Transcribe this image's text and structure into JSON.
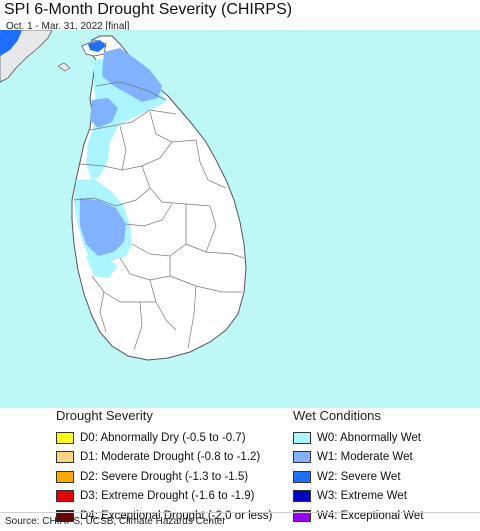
{
  "title": "SPI 6-Month Drought Severity (CHIRPS)",
  "subtitle": "Oct. 1 - Mar. 31, 2022 [final]",
  "colors": {
    "ocean": "#bdf7f6",
    "land": "#ffffff",
    "india": "#e8e8e8",
    "border": "#555555",
    "district_line": "#777777"
  },
  "legend": {
    "drought": {
      "title": "Drought Severity",
      "items": [
        {
          "code": "D0",
          "label": "D0: Abnormally Dry (-0.5 to -0.7)",
          "color": "#ffff00"
        },
        {
          "code": "D1",
          "label": "D1: Moderate Drought (-0.8 to -1.2)",
          "color": "#fcd37f"
        },
        {
          "code": "D2",
          "label": "D2: Severe Drought (-1.3 to -1.5)",
          "color": "#ffaa00"
        },
        {
          "code": "D3",
          "label": "D3: Extreme Drought (-1.6 to -1.9)",
          "color": "#e60000"
        },
        {
          "code": "D4",
          "label": "D4: Exceptional Drought (-2.0 or less)",
          "color": "#730000"
        }
      ]
    },
    "wet": {
      "title": "Wet Conditions",
      "items": [
        {
          "code": "W0",
          "label": "W0: Abnormally Wet",
          "color": "#aaf5ff"
        },
        {
          "code": "W1",
          "label": "W1: Moderate Wet",
          "color": "#80b2ff"
        },
        {
          "code": "W2",
          "label": "W2: Severe Wet",
          "color": "#1e6eff"
        },
        {
          "code": "W3",
          "label": "W3: Extreme Wet",
          "color": "#0000c8"
        },
        {
          "code": "W4",
          "label": "W4: Exceptional Wet",
          "color": "#9900ff"
        }
      ]
    }
  },
  "source": "Source: CHIRPS, UCSB, Climate Hazards Center"
}
